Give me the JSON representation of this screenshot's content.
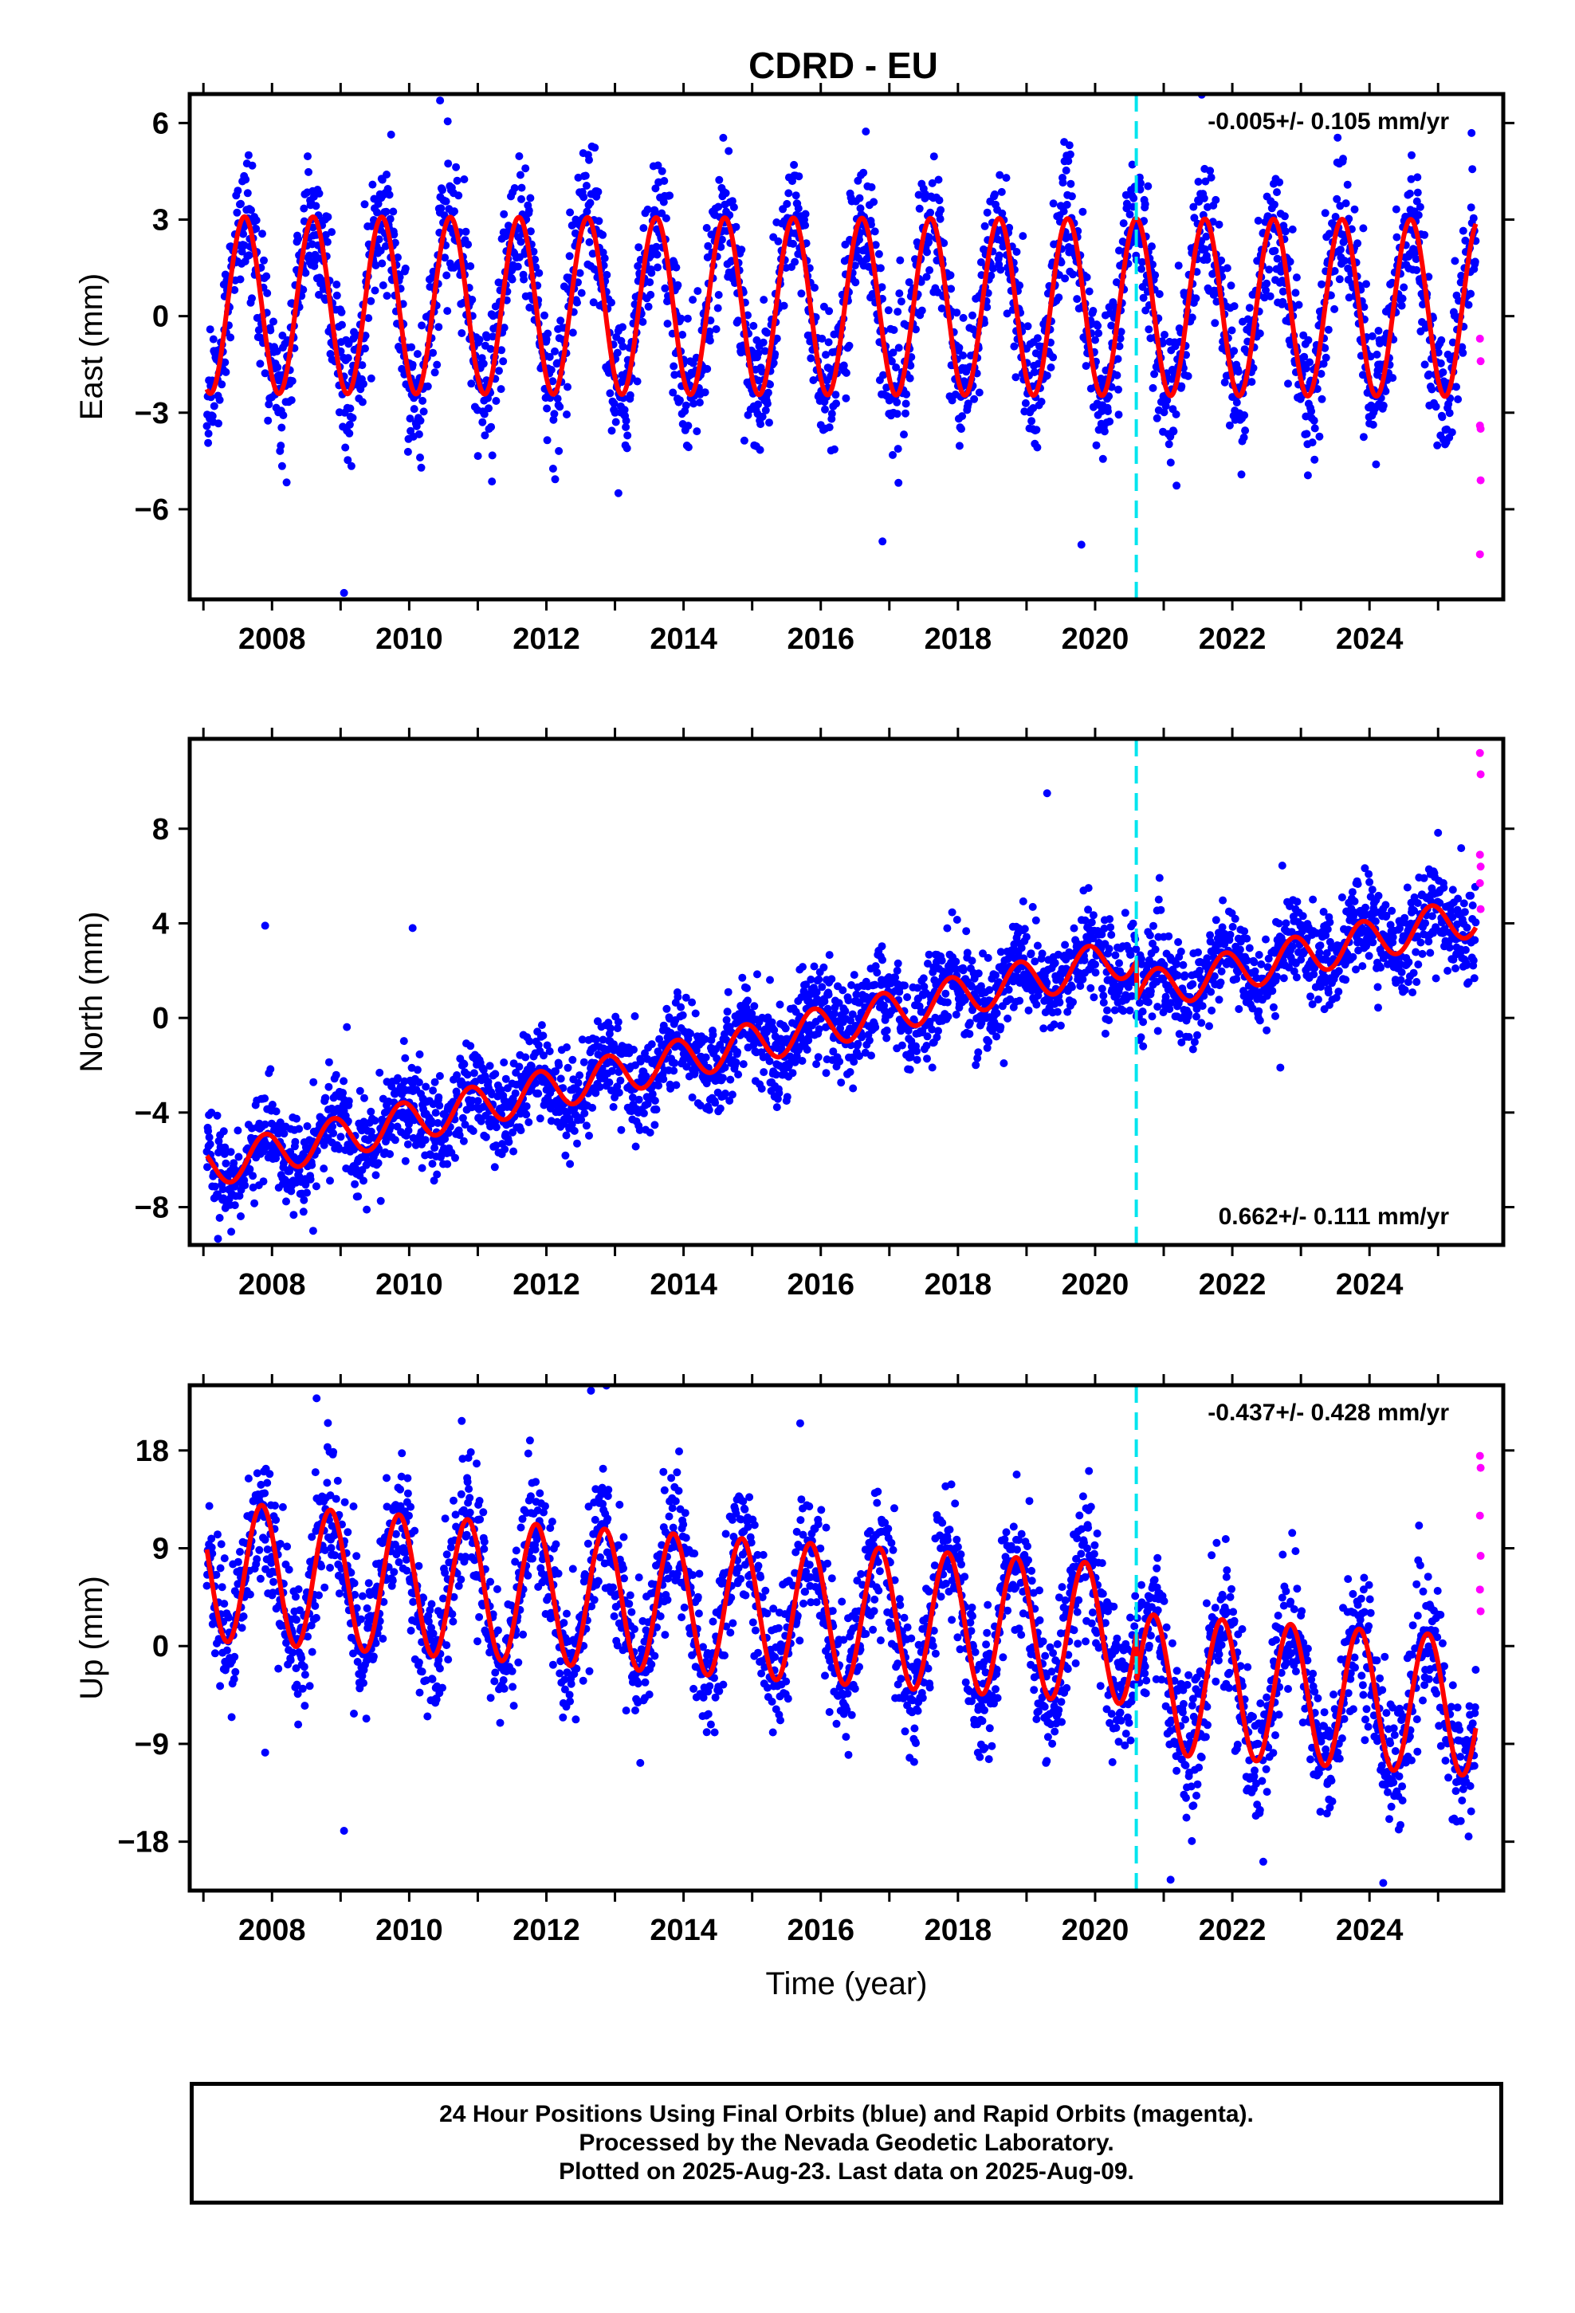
{
  "title": "CDRD - EU",
  "footer": {
    "line1": "24 Hour Positions Using Final Orbits (blue) and Rapid Orbits (magenta).",
    "line2": "Processed by the Nevada Geodetic Laboratory.",
    "line3": "Plotted on 2025-Aug-23. Last data on 2025-Aug-09."
  },
  "colors": {
    "final_orbits": "#0000ff",
    "rapid_orbits": "#ff00ff",
    "model_fit": "#ff0000",
    "equipment_change": "#00e5ee"
  },
  "chart_data": [
    {
      "type": "scatter",
      "component": "East",
      "ylabel": "East (mm)",
      "xlabel": "",
      "xlim": [
        2006.8,
        2025.95
      ],
      "ylim": [
        -8.8,
        6.9
      ],
      "yticks": [
        -6,
        -3,
        0,
        3,
        6
      ],
      "xticks": [
        2008,
        2010,
        2012,
        2014,
        2016,
        2018,
        2020,
        2022,
        2024
      ],
      "rate_label": "-0.005+/- 0.105 mm/yr",
      "rate_label_position": "top-right",
      "equipment_change_year": 2020.6,
      "model": {
        "rate": -0.005,
        "offset": 0.3,
        "amplitude": 2.75,
        "phase_year": 2007.35,
        "step_at_change": 0.0
      },
      "scatter_noise_mm": 1.05,
      "data_start": 2007.05,
      "data_end": 2025.55,
      "rapid_orbit_points": [
        {
          "x": 2025.61,
          "y": -0.7
        },
        {
          "x": 2025.62,
          "y": -1.4
        },
        {
          "x": 2025.61,
          "y": -3.4
        },
        {
          "x": 2025.62,
          "y": -3.5
        },
        {
          "x": 2025.62,
          "y": -5.1
        },
        {
          "x": 2025.61,
          "y": -7.4
        }
      ],
      "outliers": [
        {
          "x": 2009.05,
          "y": -8.6
        },
        {
          "x": 2016.9,
          "y": -7.0
        },
        {
          "x": 2019.8,
          "y": -7.1
        },
        {
          "x": 2013.05,
          "y": -5.5
        },
        {
          "x": 2010.45,
          "y": 6.7
        }
      ]
    },
    {
      "type": "scatter",
      "component": "North",
      "ylabel": "North (mm)",
      "xlabel": "",
      "xlim": [
        2006.8,
        2025.95
      ],
      "ylim": [
        -9.6,
        11.8
      ],
      "yticks": [
        -8,
        -4,
        0,
        4,
        8
      ],
      "xticks": [
        2008,
        2010,
        2012,
        2014,
        2016,
        2018,
        2020,
        2022,
        2024
      ],
      "rate_label": "0.662+/- 0.111 mm/yr",
      "rate_label_position": "bottom-right",
      "equipment_change_year": 2020.6,
      "model": {
        "rate": 0.662,
        "offset": -0.4,
        "amplitude": 0.85,
        "phase_year": 2007.65,
        "step_at_change": -1.6
      },
      "scatter_noise_mm": 1.0,
      "data_start": 2007.05,
      "data_end": 2025.55,
      "rapid_orbit_points": [
        {
          "x": 2025.61,
          "y": 11.2
        },
        {
          "x": 2025.62,
          "y": 10.3
        },
        {
          "x": 2025.61,
          "y": 6.9
        },
        {
          "x": 2025.62,
          "y": 6.4
        },
        {
          "x": 2025.61,
          "y": 5.7
        },
        {
          "x": 2025.62,
          "y": 4.6
        }
      ],
      "outliers": [
        {
          "x": 2007.9,
          "y": 3.9
        },
        {
          "x": 2010.05,
          "y": 3.8
        },
        {
          "x": 2019.3,
          "y": 9.5
        },
        {
          "x": 2022.7,
          "y": -2.1
        },
        {
          "x": 2008.6,
          "y": -9.0
        },
        {
          "x": 2020.7,
          "y": -1.2
        }
      ]
    },
    {
      "type": "scatter",
      "component": "Up",
      "ylabel": "Up (mm)",
      "xlabel": "Time (year)",
      "xlim": [
        2006.8,
        2025.95
      ],
      "ylim": [
        -22.5,
        24.0
      ],
      "yticks": [
        -18,
        -9,
        0,
        9,
        18
      ],
      "xticks": [
        2008,
        2010,
        2012,
        2014,
        2016,
        2018,
        2020,
        2022,
        2024
      ],
      "rate_label": "-0.437+/- 0.428 mm/yr",
      "rate_label_position": "top-right",
      "equipment_change_year": 2020.6,
      "model": {
        "rate": -0.437,
        "offset": 3.0,
        "amplitude": 6.4,
        "phase_year": 2007.6,
        "step_at_change": -4.4
      },
      "scatter_noise_mm": 3.1,
      "data_start": 2007.05,
      "data_end": 2025.55,
      "rapid_orbit_points": [
        {
          "x": 2025.61,
          "y": 17.5
        },
        {
          "x": 2025.62,
          "y": 16.4
        },
        {
          "x": 2025.61,
          "y": 12.0
        },
        {
          "x": 2025.62,
          "y": 8.3
        },
        {
          "x": 2025.61,
          "y": 5.2
        },
        {
          "x": 2025.62,
          "y": 3.2
        }
      ],
      "outliers": [
        {
          "x": 2009.05,
          "y": -17.0
        },
        {
          "x": 2007.9,
          "y": -9.8
        },
        {
          "x": 2012.65,
          "y": 23.5
        },
        {
          "x": 2015.7,
          "y": 20.5
        },
        {
          "x": 2021.1,
          "y": -21.5
        },
        {
          "x": 2024.2,
          "y": -21.8
        },
        {
          "x": 2008.65,
          "y": 22.8
        }
      ]
    }
  ]
}
